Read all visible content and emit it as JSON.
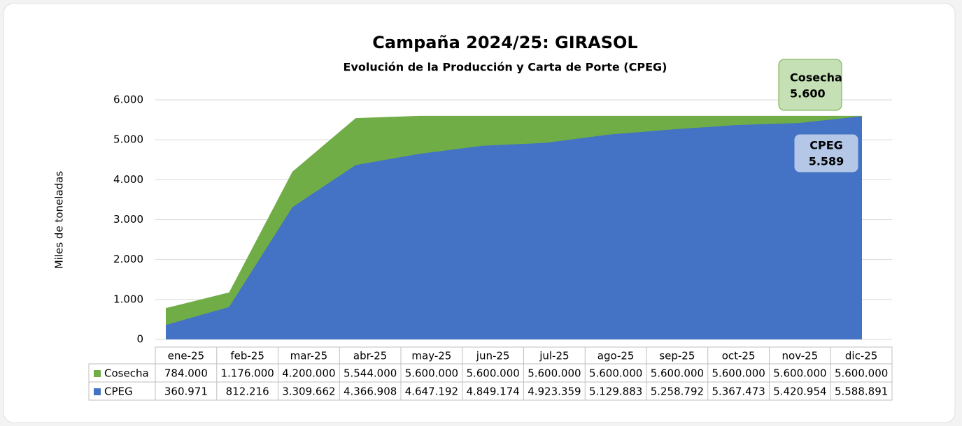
{
  "chart_data": {
    "type": "area",
    "title": "Campaña 2024/25: GIRASOL",
    "subtitle": "Evolución de la Producción y Carta de Porte (CPEG)",
    "ylabel": "Miles de toneladas",
    "categories": [
      "ene-25",
      "feb-25",
      "mar-25",
      "abr-25",
      "may-25",
      "jun-25",
      "jul-25",
      "ago-25",
      "sep-25",
      "oct-25",
      "nov-25",
      "dic-25"
    ],
    "series": [
      {
        "name": "Cosecha",
        "color": "#70ad47",
        "values": [
          784,
          1176,
          4200,
          5544,
          5600,
          5600,
          5600,
          5600,
          5600,
          5600,
          5600,
          5600
        ],
        "value_labels": [
          "784.000",
          "1.176.000",
          "4.200.000",
          "5.544.000",
          "5.600.000",
          "5.600.000",
          "5.600.000",
          "5.600.000",
          "5.600.000",
          "5.600.000",
          "5.600.000",
          "5.600.000"
        ]
      },
      {
        "name": "CPEG",
        "color": "#4472c4",
        "values": [
          360.971,
          812.216,
          3309.662,
          4366.908,
          4647.192,
          4849.174,
          4923.359,
          5129.883,
          5258.792,
          5367.473,
          5420.954,
          5588.891
        ],
        "value_labels": [
          "360.971",
          "812.216",
          "3.309.662",
          "4.366.908",
          "4.647.192",
          "4.849.174",
          "4.923.359",
          "5.129.883",
          "5.258.792",
          "5.367.473",
          "5.420.954",
          "5.588.891"
        ]
      }
    ],
    "ylim": [
      0,
      6000
    ],
    "yticks": [
      0,
      {
        "value": 1000,
        "label": "1.000"
      },
      {
        "value": 2000,
        "label": "2.000"
      },
      {
        "value": 3000,
        "label": "3.000"
      },
      {
        "value": 4000,
        "label": "4.000"
      },
      {
        "value": 5000,
        "label": "5.000"
      },
      {
        "value": 6000,
        "label": "6.000"
      }
    ],
    "grid": true,
    "annotations": [
      {
        "title": "Cosecha",
        "text": "5.600"
      },
      {
        "title": "CPEG",
        "text": "5.589"
      }
    ]
  }
}
